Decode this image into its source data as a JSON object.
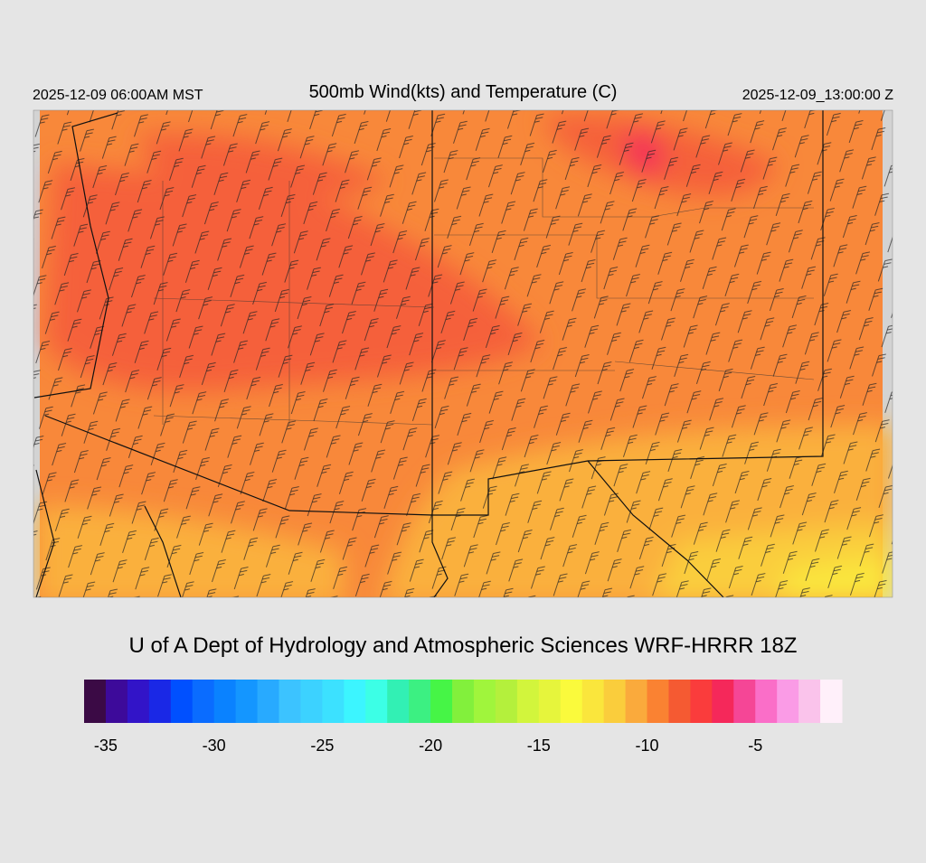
{
  "header": {
    "left_time": "2025-12-09 06:00AM MST",
    "title": "500mb Wind(kts) and Temperature (C)",
    "right_time": "2025-12-09_13:00:00 Z"
  },
  "footer": {
    "credit": "U of A Dept of Hydrology and Atmospheric Sciences WRF-HRRR 18Z"
  },
  "colorbar": {
    "range": [
      -36,
      -1
    ],
    "ticks": [
      -35,
      -30,
      -25,
      -20,
      -15,
      -10,
      -5
    ],
    "colors": [
      "#3b0a45",
      "#3d0a9a",
      "#3214c8",
      "#1a28e6",
      "#0050ff",
      "#0a6cff",
      "#0a82ff",
      "#1496ff",
      "#28aaff",
      "#3cc3ff",
      "#3cd2ff",
      "#3ce1ff",
      "#3cf5ff",
      "#3cffe6",
      "#32f0b4",
      "#3cf082",
      "#46f546",
      "#82f03c",
      "#a0f53c",
      "#b4f03c",
      "#d2f53c",
      "#e6f53c",
      "#fafa3c",
      "#fae63c",
      "#facd3c",
      "#faaa3c",
      "#fa8232",
      "#f55a32",
      "#fa3c3c",
      "#f5285a",
      "#f54696",
      "#fa6ec8",
      "#fa9be6",
      "#fac3eb",
      "#fff0fa"
    ]
  }
}
